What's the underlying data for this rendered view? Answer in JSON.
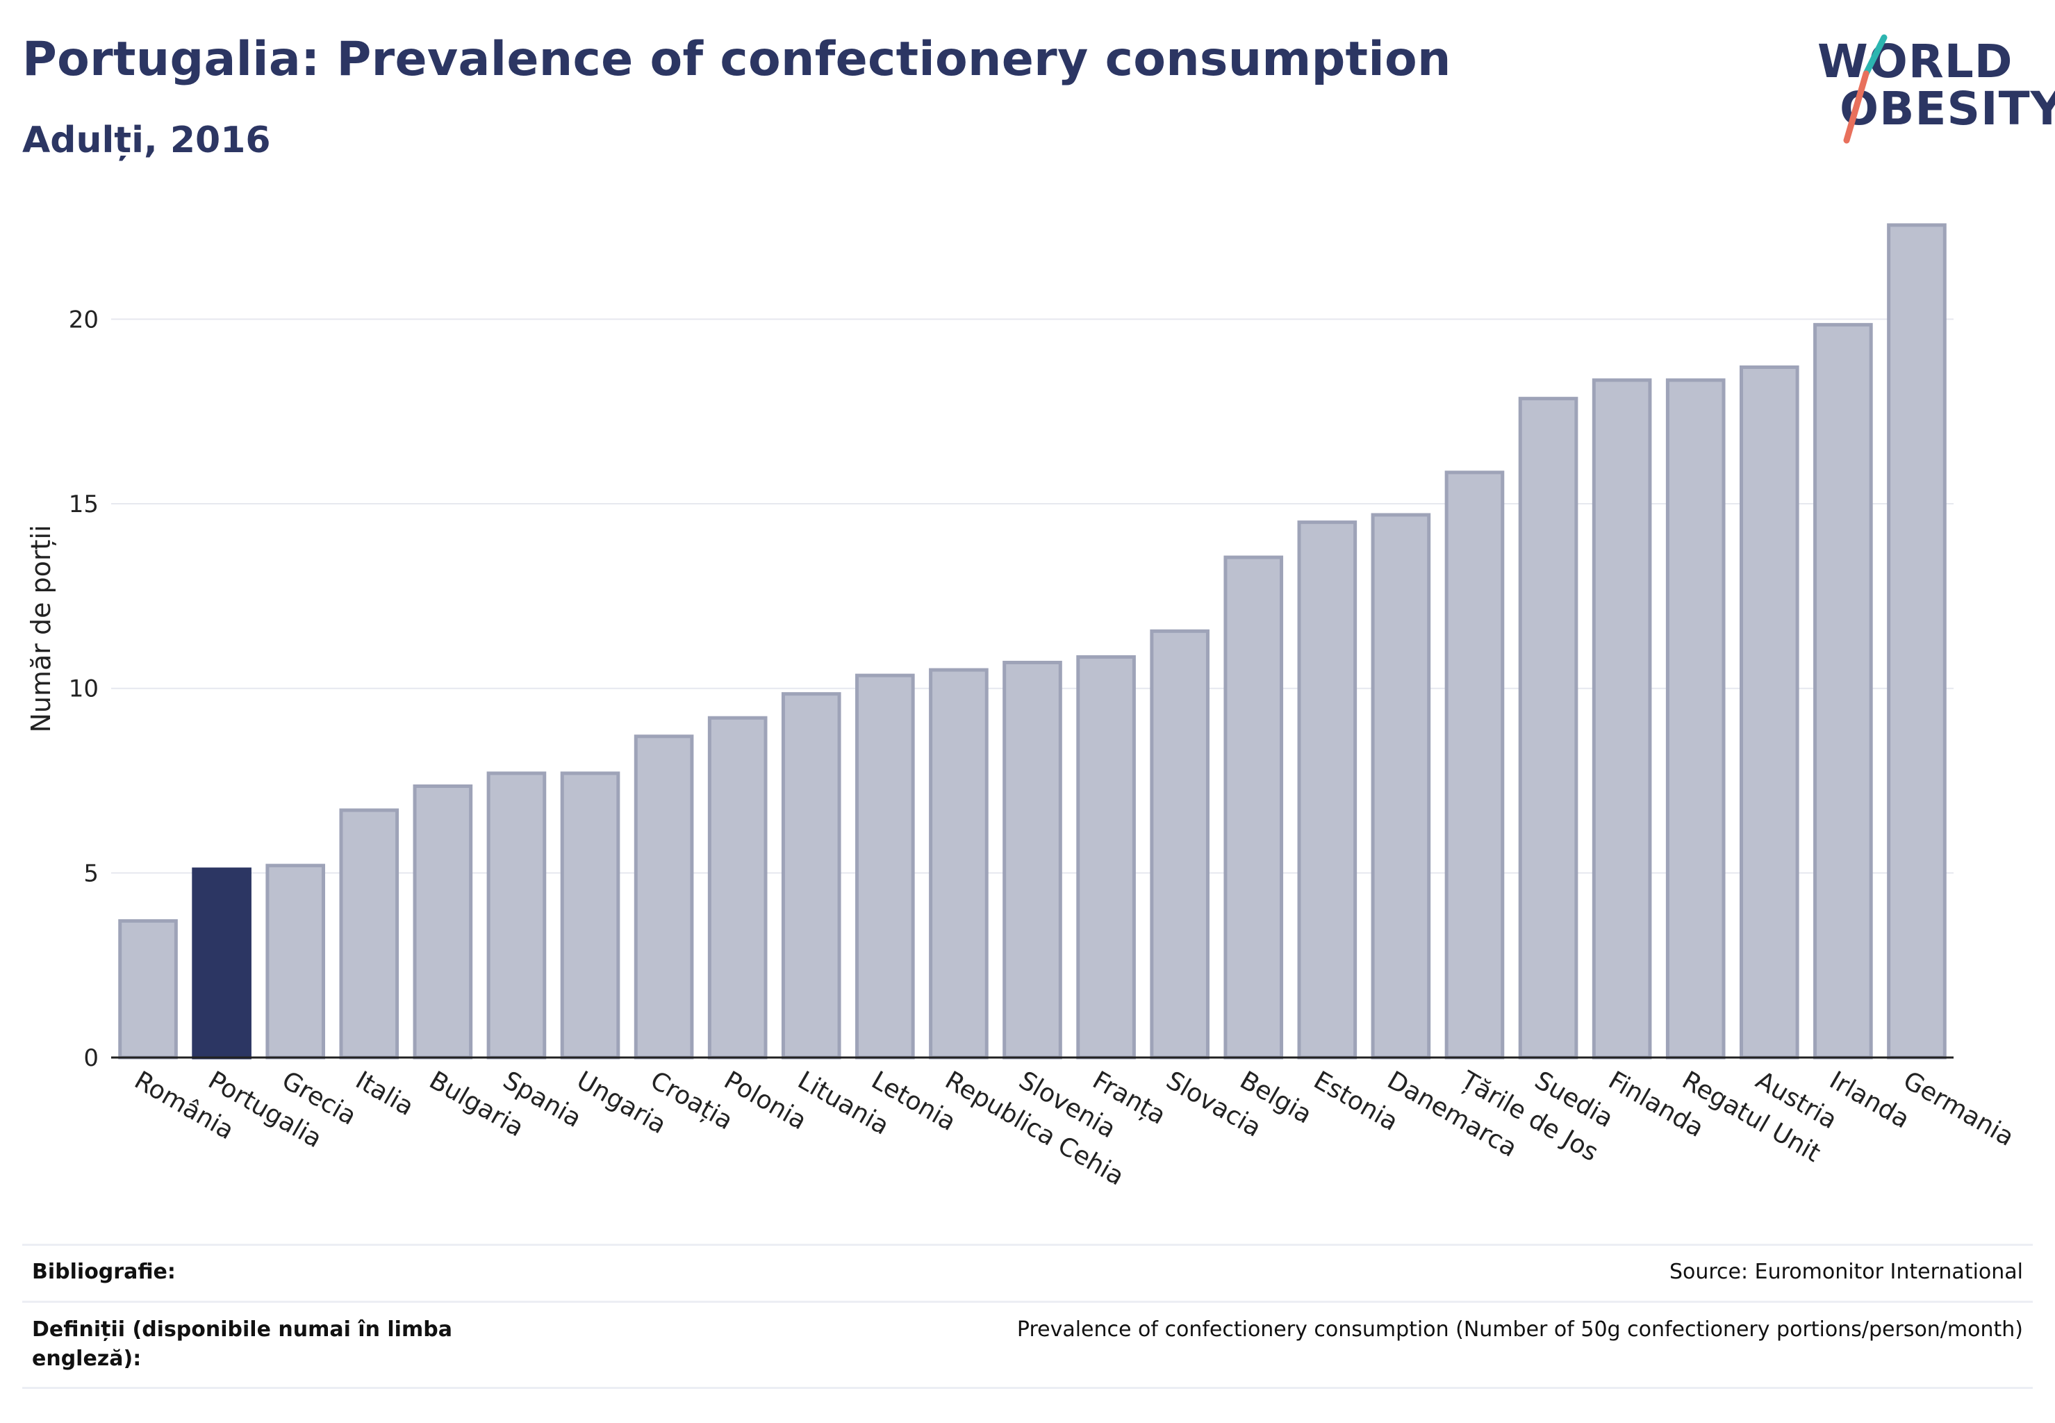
{
  "header": {
    "title": "Portugalia: Prevalence of confectionery consumption",
    "subtitle": "Adulți, 2016"
  },
  "logo": {
    "line1": "WORLD",
    "line2": "OBESITY",
    "accent_colors": [
      "#2cb5b0",
      "#e8705c"
    ]
  },
  "chart_data": {
    "type": "bar",
    "title": "Portugalia: Prevalence of confectionery consumption",
    "subtitle": "Adulți, 2016",
    "ylabel": "Număr de porții",
    "xlabel": "",
    "ylim": [
      0,
      23
    ],
    "yticks": [
      0,
      5,
      10,
      15,
      20
    ],
    "grid": true,
    "highlight": "Portugalia",
    "colors": {
      "bar": "#bcc0cf",
      "bar_edge": "#9ea3b8",
      "highlight": "#2c3663"
    },
    "categories": [
      "România",
      "Portugalia",
      "Grecia",
      "Italia",
      "Bulgaria",
      "Spania",
      "Ungaria",
      "Croația",
      "Polonia",
      "Lituania",
      "Letonia",
      "Republica Cehia",
      "Slovenia",
      "Franța",
      "Slovacia",
      "Belgia",
      "Estonia",
      "Danemarca",
      "Țările de Jos",
      "Suedia",
      "Finlanda",
      "Regatul Unit",
      "Austria",
      "Irlanda",
      "Germania"
    ],
    "values": [
      3.7,
      5.1,
      5.2,
      6.7,
      7.35,
      7.7,
      7.7,
      8.7,
      9.2,
      9.85,
      10.35,
      10.5,
      10.7,
      10.85,
      11.55,
      13.55,
      14.5,
      14.7,
      15.85,
      17.85,
      18.35,
      18.35,
      18.7,
      19.85,
      22.55
    ]
  },
  "footer": {
    "bibliography_label": "Bibliografie:",
    "bibliography_value": "Source: Euromonitor International",
    "definitions_label": "Definiții (disponibile numai în limba engleză):",
    "definitions_value": "Prevalence of confectionery consumption (Number of 50g confectionery portions/person/month)"
  }
}
